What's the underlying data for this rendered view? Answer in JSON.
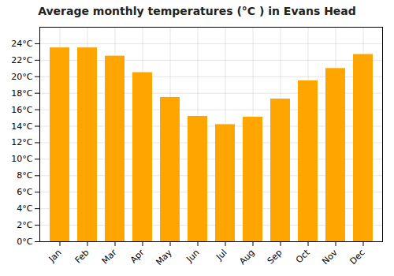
{
  "chart_data": {
    "type": "bar",
    "title": "Average monthly temperatures (°C ) in Evans Head",
    "categories": [
      "Jan",
      "Feb",
      "Mar",
      "Apr",
      "May",
      "Jun",
      "Jul",
      "Aug",
      "Sep",
      "Oct",
      "Nov",
      "Dec"
    ],
    "values": [
      23.5,
      23.5,
      22.5,
      20.5,
      17.5,
      15.2,
      14.2,
      15.1,
      17.3,
      19.5,
      21.0,
      22.7
    ],
    "color": "#FFA500",
    "ylim": [
      0,
      26
    ],
    "yticks": [
      {
        "value": 0,
        "label": "0°C"
      },
      {
        "value": 2,
        "label": "2°C"
      },
      {
        "value": 4,
        "label": "4°C"
      },
      {
        "value": 6,
        "label": "6°C"
      },
      {
        "value": 8,
        "label": "8°C"
      },
      {
        "value": 10,
        "label": "10°C"
      },
      {
        "value": 12,
        "label": "12°C"
      },
      {
        "value": 14,
        "label": "14°C"
      },
      {
        "value": 16,
        "label": "16°C"
      },
      {
        "value": 18,
        "label": "18°C"
      },
      {
        "value": 20,
        "label": "20°C"
      },
      {
        "value": 22,
        "label": "22°C"
      },
      {
        "value": 24,
        "label": "24°C"
      }
    ],
    "grid": true
  }
}
